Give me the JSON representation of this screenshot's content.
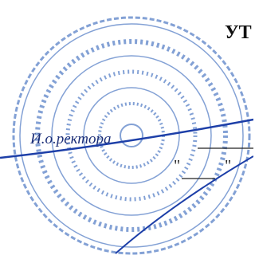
{
  "header": {
    "title": "УТ"
  },
  "signature": {
    "position": "И.о.ректора",
    "open_quote": "\"",
    "close_quote": "\""
  }
}
